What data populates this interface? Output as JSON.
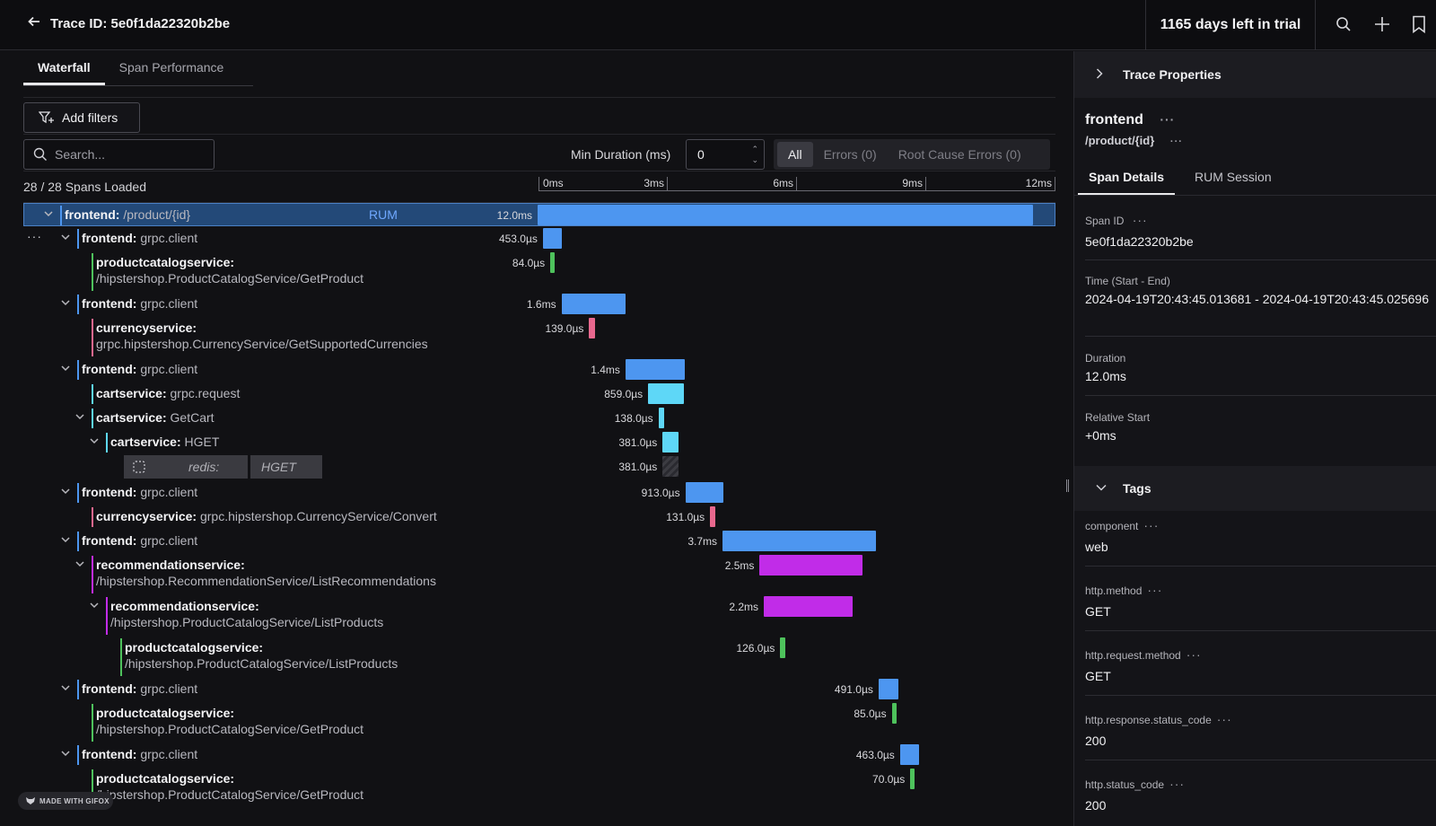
{
  "header": {
    "title": "Trace ID: 5e0f1da22320b2be",
    "trial": "1165 days left in trial",
    "icons": [
      "back-arrow-icon",
      "search-icon",
      "plus-icon",
      "bookmark-icon"
    ]
  },
  "tabs": [
    {
      "label": "Waterfall",
      "active": true
    },
    {
      "label": "Span Performance",
      "active": false
    }
  ],
  "toolbar": {
    "add_filters": "Add filters",
    "search_placeholder": "Search...",
    "min_duration_label": "Min Duration (ms)",
    "min_duration_value": "0",
    "segments": [
      "All",
      "Errors (0)",
      "Root Cause Errors (0)"
    ],
    "active_segment": "All"
  },
  "spans_loaded": "28 / 28 Spans Loaded",
  "timeline": {
    "ticks": [
      "0ms",
      "3ms",
      "6ms",
      "9ms",
      "12ms"
    ],
    "total_ms": 12.0
  },
  "spans": [
    {
      "service": "frontend:",
      "op": "/product/{id}",
      "second": "",
      "badge": "RUM",
      "duration": "12.0ms",
      "start_ms": 0.0,
      "dur_ms": 12.0,
      "color": "#4d96f0",
      "indicator": "#4d96f0",
      "depth": 1,
      "collapsible": true,
      "selected": true
    },
    {
      "service": "frontend:",
      "op": "grpc.client",
      "second": "",
      "duration": "453.0µs",
      "start_ms": 0.15,
      "dur_ms": 0.453,
      "color": "#4d96f0",
      "indicator": "#4d96f0",
      "depth": 2,
      "collapsible": true,
      "more": "···"
    },
    {
      "service": "productcatalogservice:",
      "op": "",
      "second": "/hipstershop.ProductCatalogService/GetProduct",
      "duration": "84.0µs",
      "start_ms": 0.33,
      "dur_ms": 0.084,
      "color": "#4ec25c",
      "indicator": "#4ec25c",
      "depth": 3,
      "collapsible": false
    },
    {
      "service": "frontend:",
      "op": "grpc.client",
      "second": "",
      "duration": "1.6ms",
      "start_ms": 0.6,
      "dur_ms": 1.56,
      "color": "#4d96f0",
      "indicator": "#4d96f0",
      "depth": 2,
      "collapsible": true
    },
    {
      "service": "currencyservice:",
      "op": "",
      "second": "grpc.hipstershop.CurrencyService/GetSupportedCurrencies",
      "duration": "139.0µs",
      "start_ms": 1.27,
      "dur_ms": 0.139,
      "color": "#e8688e",
      "indicator": "#e8688e",
      "depth": 3,
      "collapsible": false
    },
    {
      "service": "frontend:",
      "op": "grpc.client",
      "second": "",
      "duration": "1.4ms",
      "start_ms": 2.15,
      "dur_ms": 1.43,
      "color": "#4d96f0",
      "indicator": "#4d96f0",
      "depth": 2,
      "collapsible": true
    },
    {
      "service": "cartservice:",
      "op": "grpc.request",
      "second": "",
      "duration": "859.0µs",
      "start_ms": 2.7,
      "dur_ms": 0.859,
      "color": "#5ed7f7",
      "indicator": "#5ed7f7",
      "depth": 3,
      "collapsible": false
    },
    {
      "service": "cartservice:",
      "op": "GetCart",
      "second": "",
      "duration": "138.0µs",
      "start_ms": 2.95,
      "dur_ms": 0.138,
      "color": "#5ed7f7",
      "indicator": "#5ed7f7",
      "depth": 3,
      "collapsible": true
    },
    {
      "service": "cartservice:",
      "op": "HGET",
      "second": "",
      "duration": "381.0µs",
      "start_ms": 3.05,
      "dur_ms": 0.381,
      "color": "#5ed7f7",
      "indicator": "#5ed7f7",
      "depth": 4,
      "collapsible": true
    },
    {
      "service": "redis:",
      "op": "HGET",
      "second": "",
      "duration": "381.0µs",
      "start_ms": 3.05,
      "dur_ms": 0.381,
      "color": "#3c3c42",
      "indicator": "",
      "depth": 5,
      "collapsible": false,
      "inferred": true
    },
    {
      "service": "frontend:",
      "op": "grpc.client",
      "second": "",
      "duration": "913.0µs",
      "start_ms": 3.6,
      "dur_ms": 0.913,
      "color": "#4d96f0",
      "indicator": "#4d96f0",
      "depth": 2,
      "collapsible": true
    },
    {
      "service": "currencyservice:",
      "op": "grpc.hipstershop.CurrencyService/Convert",
      "second": "",
      "duration": "131.0µs",
      "start_ms": 4.2,
      "dur_ms": 0.131,
      "color": "#e8688e",
      "indicator": "#e8688e",
      "depth": 3,
      "collapsible": false
    },
    {
      "service": "frontend:",
      "op": "grpc.client",
      "second": "",
      "duration": "3.7ms",
      "start_ms": 4.5,
      "dur_ms": 3.72,
      "color": "#4d96f0",
      "indicator": "#4d96f0",
      "depth": 2,
      "collapsible": true
    },
    {
      "service": "recommendationservice:",
      "op": "",
      "second": "/hipstershop.RecommendationService/ListRecommendations",
      "duration": "2.5ms",
      "start_ms": 5.4,
      "dur_ms": 2.5,
      "color": "#c12ce8",
      "indicator": "#c12ce8",
      "depth": 3,
      "collapsible": true
    },
    {
      "service": "recommendationservice:",
      "op": "",
      "second": "/hipstershop.ProductCatalogService/ListProducts",
      "duration": "2.2ms",
      "start_ms": 5.5,
      "dur_ms": 2.15,
      "color": "#c12ce8",
      "indicator": "#c12ce8",
      "depth": 4,
      "collapsible": true
    },
    {
      "service": "productcatalogservice:",
      "op": "",
      "second": "/hipstershop.ProductCatalogService/ListProducts",
      "duration": "126.0µs",
      "start_ms": 5.9,
      "dur_ms": 0.126,
      "color": "#4ec25c",
      "indicator": "#4ec25c",
      "depth": 5,
      "collapsible": false
    },
    {
      "service": "frontend:",
      "op": "grpc.client",
      "second": "",
      "duration": "491.0µs",
      "start_ms": 8.28,
      "dur_ms": 0.491,
      "color": "#4d96f0",
      "indicator": "#4d96f0",
      "depth": 2,
      "collapsible": true
    },
    {
      "service": "productcatalogservice:",
      "op": "",
      "second": "/hipstershop.ProductCatalogService/GetProduct",
      "duration": "85.0µs",
      "start_ms": 8.6,
      "dur_ms": 0.085,
      "color": "#4ec25c",
      "indicator": "#4ec25c",
      "depth": 3,
      "collapsible": false
    },
    {
      "service": "frontend:",
      "op": "grpc.client",
      "second": "",
      "duration": "463.0µs",
      "start_ms": 8.8,
      "dur_ms": 0.463,
      "color": "#4d96f0",
      "indicator": "#4d96f0",
      "depth": 2,
      "collapsible": true
    },
    {
      "service": "productcatalogservice:",
      "op": "",
      "second": "/hipstershop.ProductCatalogService/GetProduct",
      "duration": "70.0µs",
      "start_ms": 9.05,
      "dur_ms": 0.07,
      "color": "#4ec25c",
      "indicator": "#4ec25c",
      "depth": 3,
      "collapsible": false
    }
  ],
  "right_panel": {
    "header": "Trace Properties",
    "service": "frontend",
    "route": "/product/{id}",
    "tabs": [
      "Span Details",
      "RUM Session"
    ],
    "fields": [
      {
        "label": "Span ID",
        "value": "5e0f1da22320b2be",
        "dots": true
      },
      {
        "label": "Time (Start - End)",
        "value": "2024-04-19T20:43:45.013681 - 2024-04-19T20:43:45.025696",
        "dots": false
      },
      {
        "label": "Duration",
        "value": "12.0ms",
        "dots": false
      },
      {
        "label": "Relative Start",
        "value": "+0ms",
        "dots": false
      }
    ],
    "tags_header": "Tags",
    "tags": [
      {
        "label": "component",
        "value": "web"
      },
      {
        "label": "http.method",
        "value": "GET"
      },
      {
        "label": "http.request.method",
        "value": "GET"
      },
      {
        "label": "http.response.status_code",
        "value": "200"
      },
      {
        "label": "http.status_code",
        "value": "200"
      }
    ]
  },
  "watermark": "MADE WITH GIFOX"
}
